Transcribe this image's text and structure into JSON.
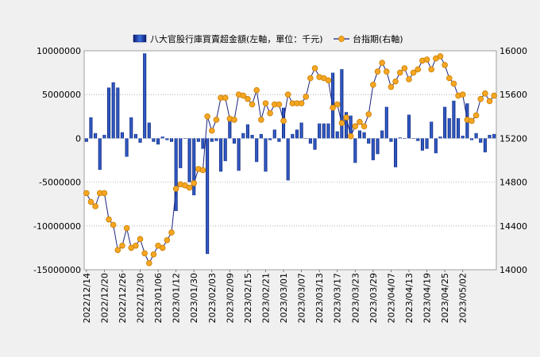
{
  "chart_data": {
    "type": "bar+line",
    "legend": {
      "bar_label": "八大官股行庫買賣超金額(左軸，單位：千元)",
      "line_label": "台指期(右軸)",
      "placement": "top-center"
    },
    "left_axis": {
      "min": -15000000,
      "max": 10000000,
      "ticks": [
        10000000,
        5000000,
        0,
        -5000000,
        -10000000,
        -15000000
      ]
    },
    "right_axis": {
      "min": 14000,
      "max": 16000,
      "ticks": [
        16000,
        15600,
        15200,
        14800,
        14400,
        14000
      ]
    },
    "grid": true,
    "x_tick_labels": [
      "2022/12/14",
      "2022/12/20",
      "2022/12/26",
      "2022/12/30",
      "2023/01/06",
      "2023/01/12",
      "2023/01/30",
      "2023/02/03",
      "2023/02/09",
      "2023/02/15",
      "2023/02/21",
      "2023/03/01",
      "2023/03/07",
      "2023/03/13",
      "2023/03/17",
      "2023/03/23",
      "2023/03/29",
      "2023/04/07",
      "2023/04/13",
      "2023/04/19",
      "2023/04/25",
      "2023/05/02"
    ],
    "x_tick_step": 4,
    "bar_values": [
      -400000,
      2400000,
      600000,
      -3600000,
      400000,
      5800000,
      6400000,
      5800000,
      700000,
      -2100000,
      2400000,
      500000,
      -500000,
      9700000,
      1800000,
      -400000,
      -700000,
      200000,
      -200000,
      -400000,
      -8300000,
      -3400000,
      0,
      -5000000,
      -6500000,
      -400000,
      -1200000,
      -13200000,
      -400000,
      -300000,
      -3800000,
      -2600000,
      2200000,
      -600000,
      -3700000,
      600000,
      1600000,
      400000,
      -2700000,
      500000,
      -3800000,
      -200000,
      1000000,
      -400000,
      3500000,
      -4800000,
      500000,
      1000000,
      1800000,
      0,
      -600000,
      -1300000,
      1700000,
      1700000,
      1700000,
      7500000,
      800000,
      7900000,
      3000000,
      2600000,
      -2800000,
      900000,
      700000,
      -600000,
      -2500000,
      -1800000,
      900000,
      3600000,
      -400000,
      -3300000,
      100000,
      0,
      2700000,
      0,
      -300000,
      -1400000,
      -1200000,
      1900000,
      -1700000,
      200000,
      3600000,
      2300000,
      4300000,
      2300000,
      300000,
      4000000,
      -200000,
      600000,
      -500000,
      -1600000,
      400000,
      500000
    ],
    "line_values": [
      14700,
      14620,
      14580,
      14700,
      14700,
      14460,
      14410,
      14180,
      14220,
      14380,
      14200,
      14220,
      14280,
      14150,
      14060,
      14140,
      14220,
      14200,
      14270,
      14340,
      14740,
      14780,
      14770,
      14750,
      14790,
      14920,
      14910,
      15400,
      15270,
      15370,
      15570,
      15570,
      15380,
      15370,
      15600,
      15590,
      15560,
      15510,
      15640,
      15370,
      15520,
      15430,
      15510,
      15510,
      15360,
      15600,
      15520,
      15520,
      15520,
      15580,
      15750,
      15840,
      15760,
      15750,
      15730,
      15480,
      15510,
      15340,
      15390,
      15220,
      15310,
      15350,
      15310,
      15420,
      15690,
      15810,
      15890,
      15810,
      15670,
      15720,
      15800,
      15840,
      15740,
      15800,
      15830,
      15910,
      15920,
      15830,
      15930,
      15950,
      15870,
      15750,
      15700,
      15590,
      15600,
      15370,
      15360,
      15410,
      15560,
      15610,
      15540,
      15590
    ]
  }
}
